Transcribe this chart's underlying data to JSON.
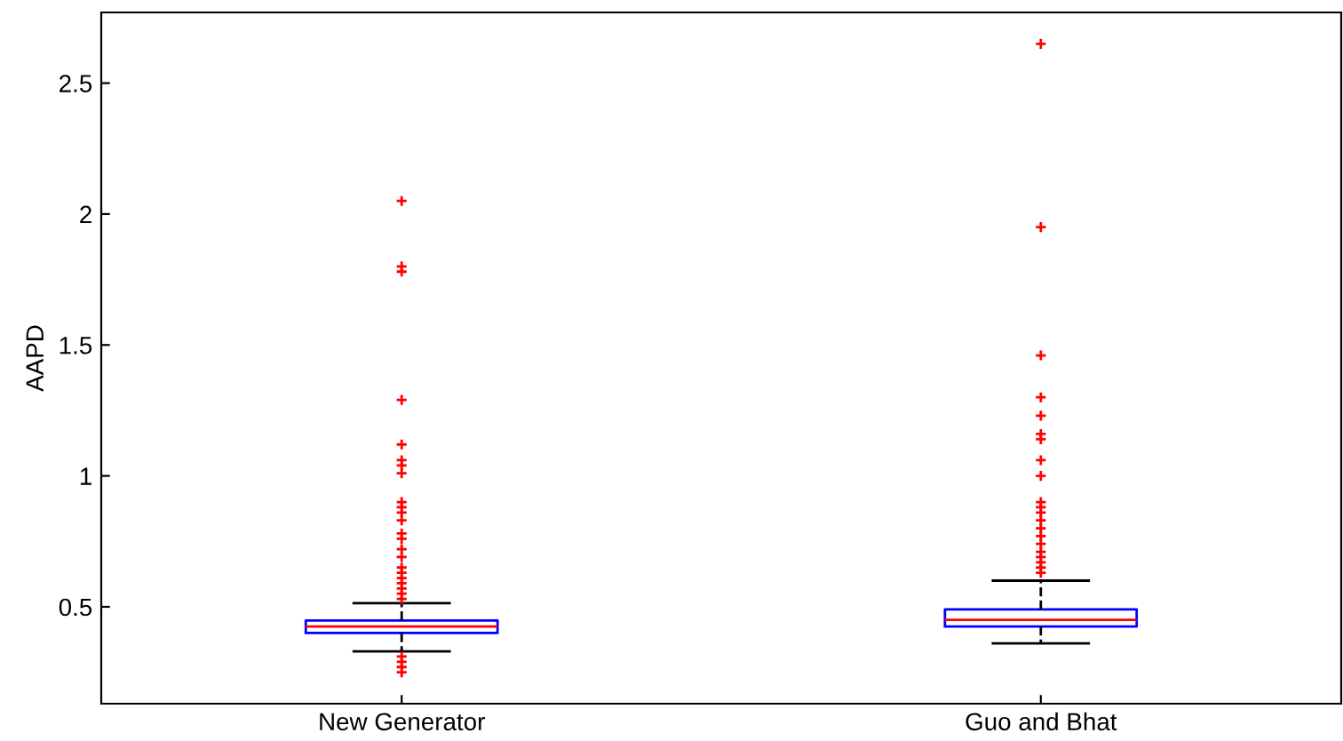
{
  "chart_data": {
    "type": "box",
    "ylabel": "AAPD",
    "categories": [
      "New Generator",
      "Guo and Bhat"
    ],
    "ylim": [
      0.13,
      2.77
    ],
    "yticks": [
      0.5,
      1,
      1.5,
      2,
      2.5
    ],
    "grid": false,
    "marker": "cross",
    "color": "#0000ff",
    "boxes": [
      {
        "low": 0.33,
        "q1": 0.4,
        "median": 0.425,
        "q3": 0.448,
        "high": 0.514,
        "outliers": [
          2.05,
          1.8,
          1.78,
          1.29,
          1.12,
          1.06,
          1.04,
          1.01,
          0.9,
          0.88,
          0.86,
          0.83,
          0.78,
          0.76,
          0.72,
          0.69,
          0.65,
          0.63,
          0.61,
          0.59,
          0.57,
          0.55,
          0.53,
          0.31,
          0.29,
          0.27,
          0.25
        ]
      },
      {
        "low": 0.36,
        "q1": 0.425,
        "median": 0.45,
        "q3": 0.49,
        "high": 0.6,
        "outliers": [
          2.65,
          1.95,
          1.46,
          1.3,
          1.23,
          1.16,
          1.14,
          1.06,
          1.0,
          0.9,
          0.88,
          0.86,
          0.83,
          0.8,
          0.77,
          0.74,
          0.71,
          0.69,
          0.67,
          0.65,
          0.63
        ]
      }
    ]
  }
}
